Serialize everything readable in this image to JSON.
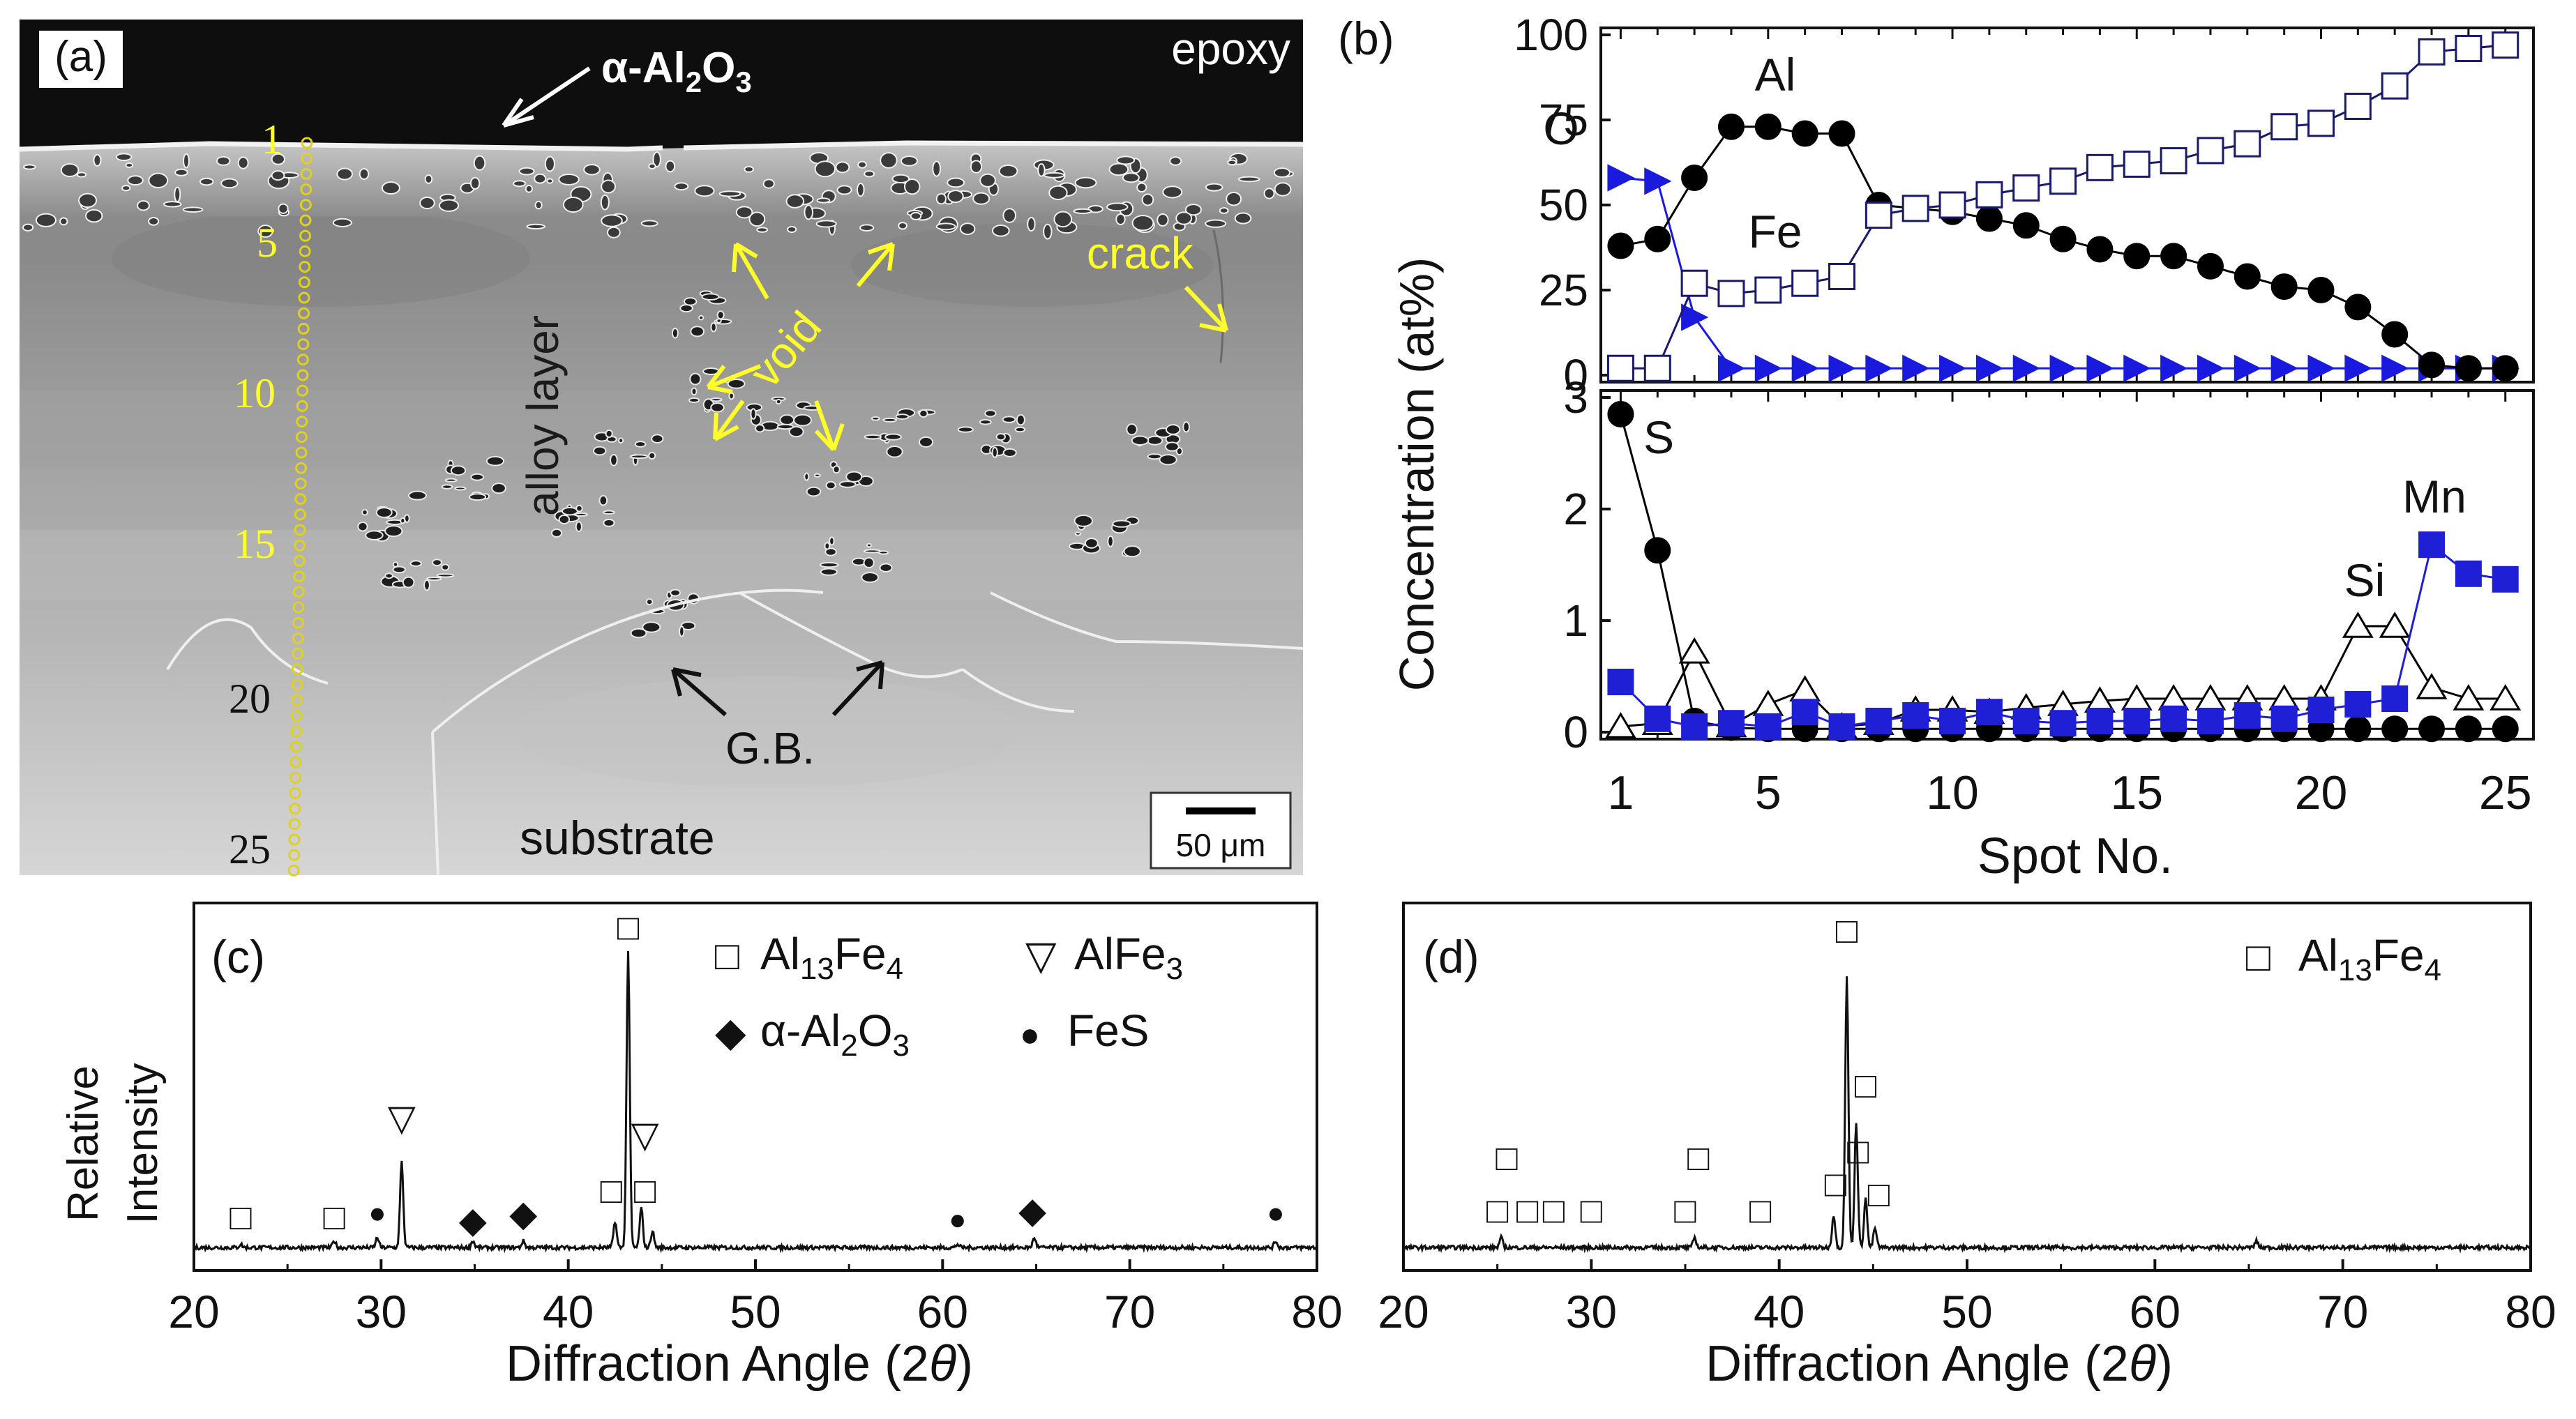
{
  "panel_a": {
    "label": "(a)",
    "alumina_label": "α-Al",
    "alumina_sub1": "2",
    "alumina_mid": "O",
    "alumina_sub2": "3",
    "epoxy_label": "epoxy",
    "crack_label": "crack",
    "void_label": "void",
    "alloy_label": "alloy layer",
    "gb_label": "G.B.",
    "substrate_label": "substrate",
    "scale_label": "50  μm",
    "spot_numbers": [
      "1",
      "5",
      "10",
      "15",
      "20",
      "25"
    ],
    "colors": {
      "annotation": "#ffff2a",
      "epoxy": "#0e0e0e"
    }
  },
  "chart_data": [
    {
      "id": "b",
      "label": "(b)",
      "type": "line",
      "xlabel": "Spot No.",
      "ylabel": "Concentration  (at%)",
      "x": [
        1,
        2,
        3,
        4,
        5,
        6,
        7,
        8,
        9,
        10,
        11,
        12,
        13,
        14,
        15,
        16,
        17,
        18,
        19,
        20,
        21,
        22,
        23,
        24,
        25
      ],
      "xticks": [
        "1",
        "5",
        "10",
        "15",
        "20",
        "25"
      ],
      "upper": {
        "ylim": [
          0,
          100
        ],
        "yticks": [
          "0",
          "25",
          "50",
          "75",
          "100"
        ],
        "series": [
          {
            "name": "O",
            "marker": "triangle-right-filled",
            "color": "#1a1adf",
            "values": [
              58,
              57,
              17,
              2,
              2,
              2,
              2,
              2,
              2,
              2,
              2,
              2,
              2,
              2,
              2,
              2,
              2,
              2,
              2,
              2,
              2,
              2,
              2,
              2,
              2
            ]
          },
          {
            "name": "Al",
            "marker": "circle-filled",
            "color": "#000000",
            "values": [
              38,
              40,
              58,
              73,
              73,
              71,
              71,
              50,
              49,
              48,
              46,
              44,
              40,
              37,
              35,
              35,
              32,
              29,
              26,
              25,
              20,
              12,
              3,
              2,
              2
            ]
          },
          {
            "name": "Fe",
            "marker": "square-open",
            "color": "#1a1a6a",
            "values": [
              2,
              2,
              27,
              24,
              25,
              27,
              29,
              47,
              49,
              50,
              53,
              55,
              57,
              61,
              62,
              63,
              66,
              68,
              73,
              74,
              79,
              85,
              95,
              96,
              97
            ]
          }
        ]
      },
      "lower": {
        "ylim": [
          0,
          3
        ],
        "yticks": [
          "0",
          "1",
          "2",
          "3"
        ],
        "series": [
          {
            "name": "S",
            "marker": "circle-filled",
            "color": "#000000",
            "values": [
              2.85,
              1.63,
              0.1,
              0.04,
              0.03,
              0.03,
              0.03,
              0.03,
              0.03,
              0.03,
              0.03,
              0.03,
              0.03,
              0.03,
              0.03,
              0.03,
              0.03,
              0.03,
              0.03,
              0.03,
              0.03,
              0.03,
              0.03,
              0.03,
              0.03
            ]
          },
          {
            "name": "Si",
            "marker": "triangle-up-open",
            "color": "#000000",
            "values": [
              0.05,
              0.08,
              0.72,
              0.06,
              0.25,
              0.38,
              0.05,
              0.08,
              0.2,
              0.2,
              0.18,
              0.22,
              0.25,
              0.28,
              0.3,
              0.3,
              0.3,
              0.3,
              0.3,
              0.3,
              0.95,
              0.95,
              0.4,
              0.3,
              0.3
            ]
          },
          {
            "name": "Mn",
            "marker": "square-filled",
            "color": "#1f1fd6",
            "values": [
              0.45,
              0.12,
              0.05,
              0.08,
              0.05,
              0.18,
              0.05,
              0.1,
              0.15,
              0.1,
              0.18,
              0.1,
              0.08,
              0.1,
              0.1,
              0.12,
              0.1,
              0.15,
              0.12,
              0.2,
              0.25,
              0.3,
              1.68,
              1.42,
              1.37
            ]
          }
        ]
      }
    },
    {
      "id": "c",
      "label": "(c)",
      "type": "line",
      "xlabel": "Diffraction Angle (2",
      "xlabel_theta": "θ",
      "xlabel_close": ")",
      "ylabel_line1": "Relative",
      "ylabel_line2": "Intensity",
      "xlim": [
        20,
        80
      ],
      "xticks": [
        "20",
        "30",
        "40",
        "50",
        "60",
        "70",
        "80"
      ],
      "legend": [
        {
          "symbol": "□",
          "text": "Al",
          "sub": "13",
          "text2": "Fe",
          "sub2": "4"
        },
        {
          "symbol": "▽",
          "text": "AlFe",
          "sub": "3",
          "text2": "",
          "sub2": ""
        },
        {
          "symbol": "◆",
          "text": "α-Al",
          "sub": "2",
          "text2": "O",
          "sub2": "3"
        },
        {
          "symbol": "●",
          "text": "FeS",
          "sub": "",
          "text2": "",
          "sub2": ""
        }
      ],
      "peaks": [
        {
          "x": 22.5,
          "h": 0.01
        },
        {
          "x": 27.5,
          "h": 0.02
        },
        {
          "x": 29.8,
          "h": 0.03
        },
        {
          "x": 31.1,
          "h": 0.26
        },
        {
          "x": 34.9,
          "h": 0.02
        },
        {
          "x": 37.6,
          "h": 0.02
        },
        {
          "x": 42.5,
          "h": 0.08
        },
        {
          "x": 43.2,
          "h": 0.9
        },
        {
          "x": 43.9,
          "h": 0.12
        },
        {
          "x": 44.5,
          "h": 0.05
        },
        {
          "x": 60.8,
          "h": 0.01
        },
        {
          "x": 64.9,
          "h": 0.03
        },
        {
          "x": 77.8,
          "h": 0.02
        }
      ],
      "markers": [
        {
          "x": 22.5,
          "level": 0.1,
          "symbol": "□"
        },
        {
          "x": 27.5,
          "level": 0.1,
          "symbol": "□"
        },
        {
          "x": 29.8,
          "level": 0.12,
          "symbol": "●"
        },
        {
          "x": 31.1,
          "level": 0.4,
          "symbol": "▽"
        },
        {
          "x": 34.9,
          "level": 0.09,
          "symbol": "◆"
        },
        {
          "x": 37.6,
          "level": 0.11,
          "symbol": "◆"
        },
        {
          "x": 42.3,
          "level": 0.18,
          "symbol": "□"
        },
        {
          "x": 43.2,
          "level": 0.98,
          "symbol": "□"
        },
        {
          "x": 44.1,
          "level": 0.18,
          "symbol": "□"
        },
        {
          "x": 44.1,
          "level": 0.35,
          "symbol": "▽"
        },
        {
          "x": 60.8,
          "level": 0.1,
          "symbol": "●"
        },
        {
          "x": 64.8,
          "level": 0.12,
          "symbol": "◆"
        },
        {
          "x": 77.8,
          "level": 0.12,
          "symbol": "●"
        }
      ]
    },
    {
      "id": "d",
      "label": "(d)",
      "type": "line",
      "xlabel": "Diffraction Angle (2",
      "xlabel_theta": "θ",
      "xlabel_close": ")",
      "xlim": [
        20,
        80
      ],
      "xticks": [
        "20",
        "30",
        "40",
        "50",
        "60",
        "70",
        "80"
      ],
      "legend": [
        {
          "symbol": "□",
          "text": "Al",
          "sub": "13",
          "text2": "Fe",
          "sub2": "4"
        }
      ],
      "peaks": [
        {
          "x": 25.2,
          "h": 0.03
        },
        {
          "x": 35.5,
          "h": 0.03
        },
        {
          "x": 42.9,
          "h": 0.1
        },
        {
          "x": 43.6,
          "h": 0.82
        },
        {
          "x": 44.1,
          "h": 0.38
        },
        {
          "x": 44.6,
          "h": 0.15
        },
        {
          "x": 45.1,
          "h": 0.06
        },
        {
          "x": 65.4,
          "h": 0.02
        }
      ],
      "markers": [
        {
          "x": 25.0,
          "level": 0.12,
          "symbol": "□"
        },
        {
          "x": 25.5,
          "level": 0.28,
          "symbol": "□"
        },
        {
          "x": 26.6,
          "level": 0.12,
          "symbol": "□"
        },
        {
          "x": 28.0,
          "level": 0.12,
          "symbol": "□"
        },
        {
          "x": 30.0,
          "level": 0.12,
          "symbol": "□"
        },
        {
          "x": 35.0,
          "level": 0.12,
          "symbol": "□"
        },
        {
          "x": 35.7,
          "level": 0.28,
          "symbol": "□"
        },
        {
          "x": 39.0,
          "level": 0.12,
          "symbol": "□"
        },
        {
          "x": 43.0,
          "level": 0.2,
          "symbol": "□"
        },
        {
          "x": 43.6,
          "level": 0.97,
          "symbol": "□"
        },
        {
          "x": 44.2,
          "level": 0.3,
          "symbol": "□"
        },
        {
          "x": 44.6,
          "level": 0.5,
          "symbol": "□"
        },
        {
          "x": 45.3,
          "level": 0.17,
          "symbol": "□"
        }
      ]
    }
  ]
}
